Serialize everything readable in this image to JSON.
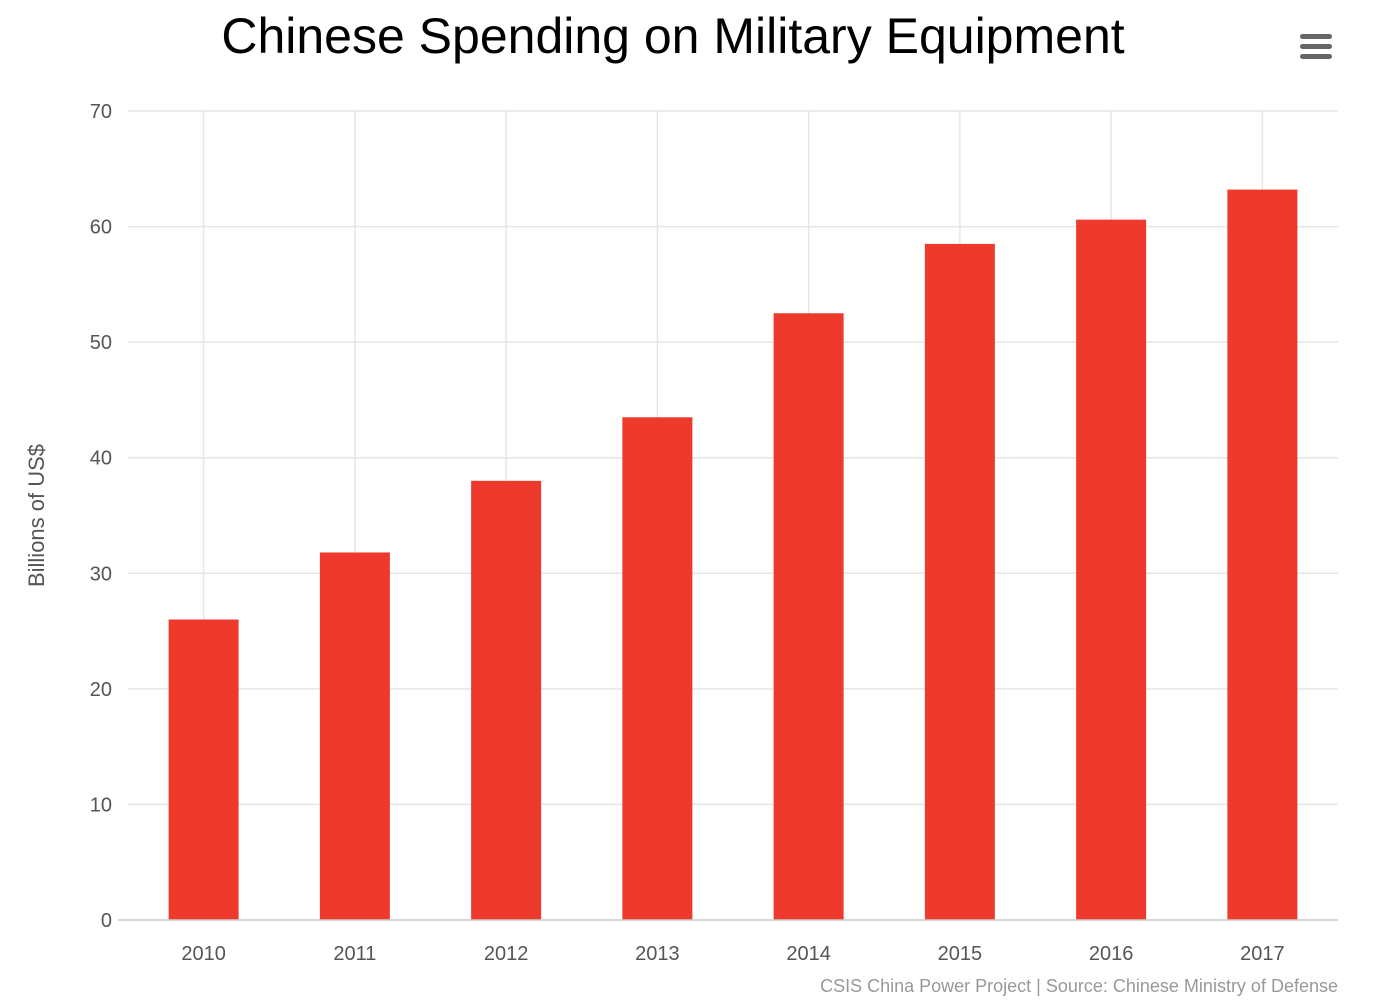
{
  "chart_data": {
    "type": "bar",
    "title": "Chinese Spending on Military Equipment",
    "xlabel": "",
    "ylabel": "Billions of US$",
    "categories": [
      "2010",
      "2011",
      "2012",
      "2013",
      "2014",
      "2015",
      "2016",
      "2017"
    ],
    "values": [
      26.0,
      31.8,
      38.0,
      43.5,
      52.5,
      58.5,
      60.6,
      63.2
    ],
    "ylim": [
      0,
      70
    ],
    "yticks": [
      0,
      10,
      20,
      30,
      40,
      50,
      60,
      70
    ],
    "grid": true,
    "legend": "none",
    "bar_color": "#ee3a2c",
    "credits": "CSIS China Power Project | Source: Chinese Ministry of Defense"
  },
  "toolbar": {
    "menu_icon": "hamburger-menu-icon"
  }
}
